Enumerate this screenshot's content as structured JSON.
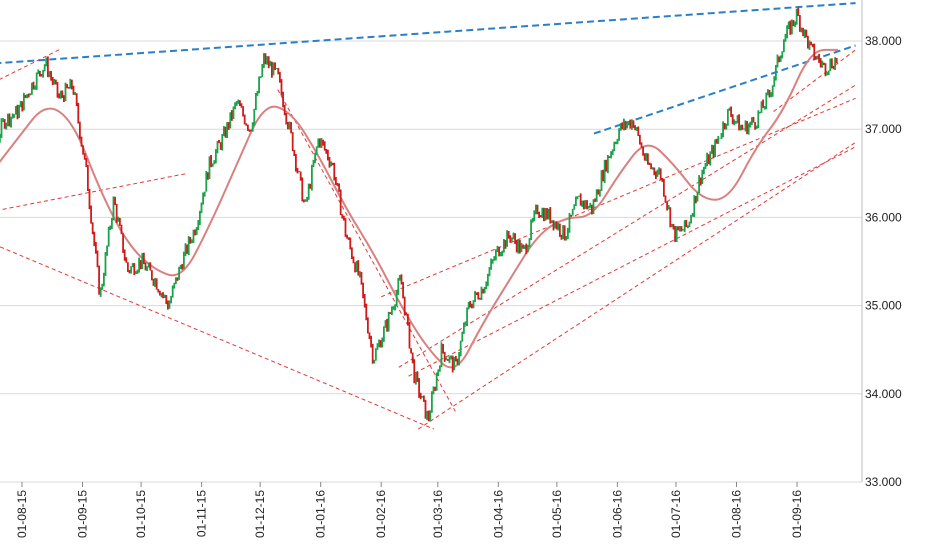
{
  "chart_data": {
    "type": "ohlc",
    "title": "",
    "xlabel": "",
    "ylabel": "",
    "ylim": [
      33.0,
      38.6
    ],
    "y_ticks": [
      "33.000",
      "34.000",
      "35.000",
      "36.000",
      "37.000",
      "38.000"
    ],
    "x_ticks": [
      "01-08-15",
      "01-09-15",
      "01-10-15",
      "01-11-15",
      "01-12-15",
      "01-01-16",
      "01-02-16",
      "01-03-16",
      "01-04-16",
      "01-05-16",
      "01-06-16",
      "01-07-16",
      "01-08-16",
      "01-09-16"
    ],
    "grid": "horizontal",
    "colors": {
      "up": "#1aa34a",
      "down": "#d11a1a",
      "moving_average": "#d98080",
      "trend_blue": "#2a7fc9",
      "channel_red": "#e03a3a",
      "grid": "#d9d9d9"
    },
    "close_path": [
      [
        "01-07-15",
        35.8
      ],
      [
        "2015-07-09",
        36.5
      ],
      [
        "2015-07-16",
        36.7
      ],
      [
        "2015-07-23",
        37.1
      ],
      [
        "2015-07-30",
        37.2
      ],
      [
        "2015-08-06",
        37.5
      ],
      [
        "2015-08-13",
        37.75
      ],
      [
        "2015-08-20",
        37.35
      ],
      [
        "2015-08-27",
        37.5
      ],
      [
        "2015-09-03",
        36.5
      ],
      [
        "2015-09-10",
        35.1
      ],
      [
        "2015-09-17",
        36.2
      ],
      [
        "2015-09-24",
        35.4
      ],
      [
        "2015-10-01",
        35.5
      ],
      [
        "2015-10-08",
        35.3
      ],
      [
        "2015-10-15",
        35.0
      ],
      [
        "2015-10-22",
        35.5
      ],
      [
        "2015-10-29",
        35.9
      ],
      [
        "2015-11-05",
        36.6
      ],
      [
        "2015-11-12",
        36.9
      ],
      [
        "2015-11-19",
        37.3
      ],
      [
        "2015-11-26",
        37.0
      ],
      [
        "2015-12-03",
        37.8
      ],
      [
        "2015-12-10",
        37.6
      ],
      [
        "2015-12-17",
        36.9
      ],
      [
        "2015-12-24",
        36.1
      ],
      [
        "2015-12-31",
        36.9
      ],
      [
        "2016-01-07",
        36.6
      ],
      [
        "2016-01-14",
        35.8
      ],
      [
        "2016-01-21",
        35.3
      ],
      [
        "2016-01-28",
        34.4
      ],
      [
        "2016-02-04",
        34.8
      ],
      [
        "2016-02-11",
        35.3
      ],
      [
        "2016-02-18",
        34.2
      ],
      [
        "2016-02-25",
        33.7
      ],
      [
        "2016-03-03",
        34.5
      ],
      [
        "2016-03-10",
        34.3
      ],
      [
        "2016-03-17",
        35.0
      ],
      [
        "2016-03-24",
        35.2
      ],
      [
        "2016-03-31",
        35.6
      ],
      [
        "2016-04-07",
        35.8
      ],
      [
        "2016-04-14",
        35.6
      ],
      [
        "2016-04-21",
        36.1
      ],
      [
        "2016-04-28",
        36.0
      ],
      [
        "2016-05-05",
        35.8
      ],
      [
        "2016-05-12",
        36.2
      ],
      [
        "2016-05-19",
        36.1
      ],
      [
        "2016-05-26",
        36.6
      ],
      [
        "2016-06-02",
        37.0
      ],
      [
        "2016-06-09",
        37.1
      ],
      [
        "2016-06-16",
        36.6
      ],
      [
        "2016-06-23",
        36.5
      ],
      [
        "2016-06-30",
        35.8
      ],
      [
        "2016-07-07",
        35.9
      ],
      [
        "2016-07-14",
        36.5
      ],
      [
        "2016-07-21",
        36.8
      ],
      [
        "2016-07-28",
        37.2
      ],
      [
        "2016-08-04",
        37.0
      ],
      [
        "2016-08-11",
        37.1
      ],
      [
        "2016-08-18",
        37.4
      ],
      [
        "2016-08-25",
        38.0
      ],
      [
        "2016-09-01",
        38.3
      ],
      [
        "2016-09-08",
        37.9
      ],
      [
        "2016-09-15",
        37.7
      ],
      [
        "2016-09-22",
        37.8
      ]
    ],
    "moving_average": [
      [
        "2015-07-02",
        36.1
      ],
      [
        "2015-07-16",
        36.5
      ],
      [
        "2015-07-30",
        36.9
      ],
      [
        "2015-08-13",
        37.3
      ],
      [
        "2015-08-27",
        37.1
      ],
      [
        "2015-09-10",
        36.3
      ],
      [
        "2015-09-24",
        35.7
      ],
      [
        "2015-10-08",
        35.4
      ],
      [
        "2015-10-22",
        35.3
      ],
      [
        "2015-11-05",
        35.9
      ],
      [
        "2015-11-19",
        36.6
      ],
      [
        "2015-12-03",
        37.3
      ],
      [
        "2015-12-17",
        37.2
      ],
      [
        "2015-12-31",
        36.7
      ],
      [
        "2016-01-14",
        36.1
      ],
      [
        "2016-01-28",
        35.6
      ],
      [
        "2016-02-11",
        35.0
      ],
      [
        "2016-02-25",
        34.5
      ],
      [
        "2016-03-10",
        34.2
      ],
      [
        "2016-03-24",
        34.8
      ],
      [
        "2016-04-07",
        35.3
      ],
      [
        "2016-04-21",
        35.8
      ],
      [
        "2016-05-05",
        36.0
      ],
      [
        "2016-05-19",
        36.0
      ],
      [
        "2016-06-02",
        36.5
      ],
      [
        "2016-06-16",
        36.9
      ],
      [
        "2016-06-30",
        36.6
      ],
      [
        "2016-07-14",
        36.2
      ],
      [
        "2016-07-28",
        36.2
      ],
      [
        "2016-08-11",
        36.8
      ],
      [
        "2016-08-25",
        37.2
      ],
      [
        "2016-09-08",
        37.9
      ],
      [
        "2016-09-22",
        37.9
      ]
    ],
    "trendlines": [
      {
        "style": "blue-dashed",
        "from": [
          "2015-07-01",
          37.72
        ],
        "to": [
          "2016-10-01",
          38.43
        ]
      },
      {
        "style": "blue-dashed",
        "from": [
          "2016-05-20",
          36.95
        ],
        "to": [
          "2016-10-01",
          37.95
        ]
      },
      {
        "style": "red-dashed",
        "from": [
          "2015-07-01",
          37.35
        ],
        "to": [
          "2015-08-20",
          37.9
        ]
      },
      {
        "style": "red-dashed",
        "from": [
          "2015-07-01",
          36.0
        ],
        "to": [
          "2015-10-25",
          36.5
        ]
      },
      {
        "style": "red-dashed",
        "from": [
          "2015-07-01",
          35.85
        ],
        "to": [
          "2016-02-28",
          33.6
        ]
      },
      {
        "style": "red-dashed",
        "from": [
          "2015-12-10",
          37.45
        ],
        "to": [
          "2016-03-10",
          33.8
        ]
      },
      {
        "style": "red-dashed",
        "from": [
          "2016-02-01",
          35.1
        ],
        "to": [
          "2016-10-01",
          37.35
        ]
      },
      {
        "style": "red-dashed",
        "from": [
          "2016-02-10",
          34.3
        ],
        "to": [
          "2016-10-01",
          37.5
        ]
      },
      {
        "style": "red-dashed",
        "from": [
          "2016-02-15",
          34.2
        ],
        "to": [
          "2016-10-01",
          36.8
        ]
      },
      {
        "style": "red-dashed",
        "from": [
          "2016-02-20",
          33.6
        ],
        "to": [
          "2016-10-01",
          36.85
        ]
      },
      {
        "style": "red-dashed",
        "from": [
          "2016-08-20",
          37.2
        ],
        "to": [
          "2016-10-01",
          37.9
        ]
      }
    ]
  }
}
